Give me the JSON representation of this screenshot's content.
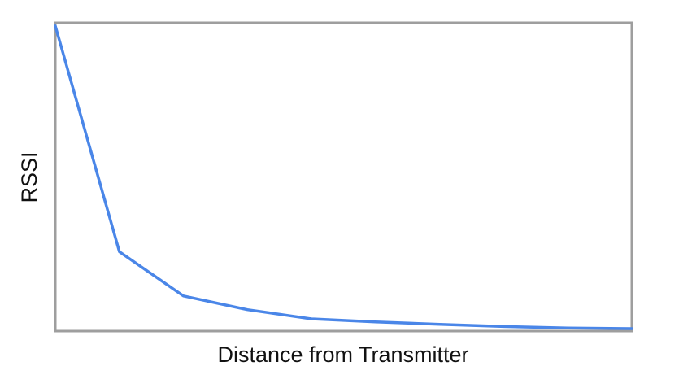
{
  "chart_data": {
    "type": "line",
    "title": "",
    "xlabel": "Distance from Transmitter",
    "ylabel": "RSSI",
    "x": [
      0,
      1,
      2,
      3,
      4,
      5,
      6,
      7,
      8,
      9
    ],
    "series": [
      {
        "values": [
          100,
          26,
          11.5,
          7,
          4,
          3,
          2.2,
          1.5,
          1,
          0.8
        ]
      }
    ],
    "xlim": [
      0,
      9
    ],
    "ylim": [
      0,
      101
    ],
    "grid": false,
    "ticks_visible": false,
    "line_color": "#4a86e8",
    "frame_color": "#9e9e9e"
  }
}
